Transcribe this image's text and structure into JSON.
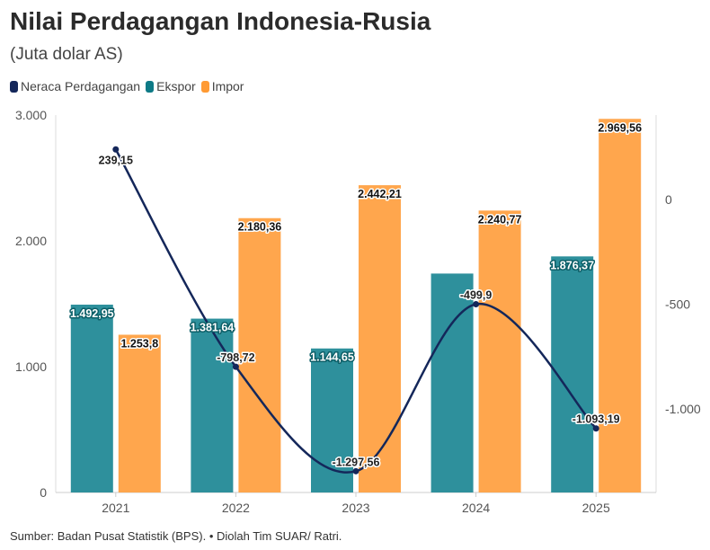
{
  "title": "Nilai Perdagangan Indonesia-Rusia",
  "subtitle": "(Juta dolar AS)",
  "source": "Sumber: Badan Pusat Statistik (BPS). • Diolah Tim SUAR/ Ratri.",
  "chart_data": {
    "type": "bar+line",
    "categories": [
      "2021",
      "2022",
      "2023",
      "2024",
      "2025"
    ],
    "series": [
      {
        "name": "Neraca Perdagangan",
        "type": "line",
        "axis": "right",
        "color": "#14275a",
        "values": [
          239.15,
          -798.72,
          -1297.56,
          -499.9,
          -1093.19
        ],
        "labels": [
          "239,15",
          "-798,72",
          "-1.297,56",
          "-499,9",
          "-1.093,19"
        ]
      },
      {
        "name": "Ekspor",
        "type": "bar",
        "axis": "left",
        "color": "#2e909c",
        "legend_color": "#0e7a86",
        "values": [
          1492.95,
          1381.64,
          1144.65,
          1740,
          1876.37
        ],
        "labels": [
          "1.492,95",
          "1.381,64",
          "1.144,65",
          "",
          "1.876,37"
        ]
      },
      {
        "name": "Impor",
        "type": "bar",
        "axis": "left",
        "color": "#ffa64d",
        "legend_color": "#ff9a33",
        "values": [
          1253.8,
          2180.36,
          2442.21,
          2240.77,
          2969.56
        ],
        "labels": [
          "1.253,8",
          "2.180,36",
          "2.442,21",
          "2.240,77",
          "2.969,56"
        ]
      }
    ],
    "left_axis": {
      "ylim": [
        0,
        3000
      ],
      "ticks": [
        0,
        1000,
        2000,
        3000
      ],
      "tick_labels": [
        "0",
        "1.000",
        "2.000",
        "3.000"
      ]
    },
    "right_axis": {
      "ticks": [
        0,
        -500,
        -1000
      ],
      "tick_labels": [
        "0",
        "-500",
        "-1.000"
      ]
    },
    "legend": "top-left",
    "grid": false
  }
}
